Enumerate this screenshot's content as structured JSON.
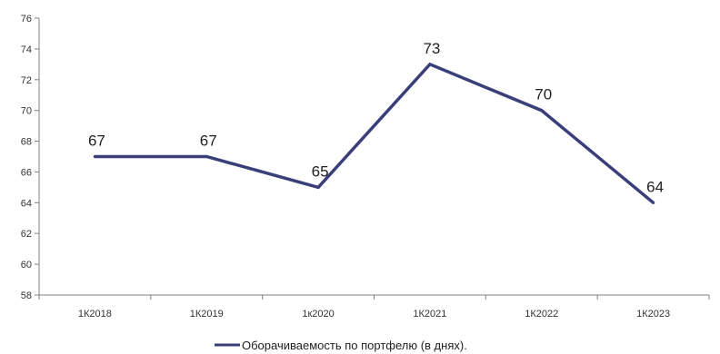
{
  "chart_data": {
    "type": "line",
    "categories": [
      "1К2018",
      "1К2019",
      "1к2020",
      "1К2021",
      "1К2022",
      "1К2023"
    ],
    "series": [
      {
        "name": "Оборачиваемость по портфелю (в днях).",
        "values": [
          67,
          67,
          65,
          73,
          70,
          64
        ],
        "color": "#3a3f7a"
      }
    ],
    "ylim": [
      58,
      76
    ],
    "yticks": [
      "58",
      "60",
      "62",
      "64",
      "66",
      "68",
      "70",
      "72",
      "74",
      "76"
    ],
    "data_labels": [
      "67",
      "67",
      "65",
      "73",
      "70",
      "64"
    ],
    "grid": false,
    "legend_position": "bottom",
    "axis_color": "#808080"
  }
}
